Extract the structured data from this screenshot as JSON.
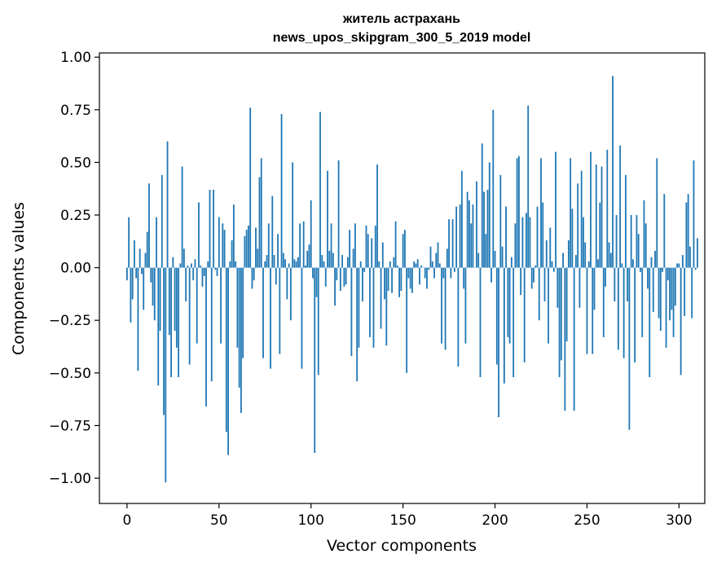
{
  "chart_data": {
    "type": "bar",
    "title_lines": [
      "житель астрахань",
      "news_upos_skipgram_300_5_2019 model"
    ],
    "xlabel": "Vector components",
    "ylabel": "Components values",
    "xlim": [
      -15,
      314
    ],
    "ylim": [
      -1.12,
      1.02
    ],
    "x_ticks": [
      0,
      50,
      100,
      150,
      200,
      250,
      300
    ],
    "x_tick_labels": [
      "0",
      "50",
      "100",
      "150",
      "200",
      "250",
      "300"
    ],
    "y_ticks": [
      -1.0,
      -0.75,
      -0.5,
      -0.25,
      0.0,
      0.25,
      0.5,
      0.75,
      1.0
    ],
    "y_tick_labels": [
      "−1.00",
      "−0.75",
      "−0.50",
      "−0.25",
      "0.00",
      "0.25",
      "0.50",
      "0.75",
      "1.00"
    ],
    "bar_color": "#1f77b4",
    "values": [
      -0.06,
      0.24,
      -0.26,
      -0.15,
      0.13,
      -0.05,
      -0.49,
      0.09,
      -0.03,
      -0.2,
      0.07,
      0.17,
      0.4,
      -0.07,
      -0.18,
      -0.25,
      0.24,
      -0.56,
      -0.3,
      0.44,
      -0.7,
      -1.02,
      0.6,
      -0.32,
      -0.52,
      0.05,
      -0.3,
      -0.38,
      -0.52,
      0.02,
      0.48,
      0.09,
      -0.16,
      0.01,
      -0.46,
      0.02,
      -0.06,
      0.04,
      -0.36,
      0.31,
      0.01,
      -0.09,
      -0.04,
      -0.66,
      0.03,
      0.37,
      -0.54,
      0.37,
      -0.01,
      -0.04,
      0.24,
      -0.36,
      0.21,
      0.18,
      -0.78,
      -0.89,
      0.03,
      0.13,
      0.3,
      0.03,
      -0.38,
      -0.57,
      -0.69,
      -0.43,
      0.15,
      0.18,
      0.2,
      0.76,
      -0.1,
      -0.06,
      0.19,
      0.09,
      0.43,
      0.52,
      -0.43,
      0.03,
      0.06,
      0.21,
      -0.48,
      0.34,
      0.06,
      -0.08,
      0.16,
      -0.41,
      0.73,
      0.07,
      0.04,
      -0.15,
      0.02,
      -0.25,
      0.5,
      0.04,
      0.03,
      0.05,
      0.21,
      -0.48,
      0.22,
      0.01,
      0.08,
      0.11,
      0.32,
      -0.05,
      -0.88,
      -0.14,
      -0.51,
      0.74,
      0.06,
      0.03,
      -0.09,
      0.46,
      0.08,
      0.21,
      0.07,
      -0.18,
      -0.06,
      0.51,
      -0.11,
      0.06,
      -0.09,
      -0.08,
      0.05,
      0.18,
      -0.42,
      0.09,
      0.21,
      -0.54,
      -0.38,
      0.03,
      -0.16,
      -0.02,
      0.2,
      0.16,
      -0.33,
      0.14,
      -0.38,
      0.2,
      0.49,
      0.03,
      -0.29,
      0.12,
      -0.15,
      -0.37,
      -0.11,
      0.03,
      -0.12,
      0.05,
      0.22,
      0.01,
      -0.14,
      -0.11,
      0.16,
      0.18,
      -0.5,
      -0.05,
      -0.1,
      -0.12,
      0.03,
      0.02,
      0.04,
      -0.08,
      0.01,
      0.0,
      -0.05,
      -0.1,
      -0.01,
      0.1,
      0.03,
      -0.05,
      0.07,
      0.12,
      0.02,
      -0.36,
      -0.05,
      -0.39,
      0.09,
      0.23,
      -0.05,
      0.23,
      -0.02,
      0.29,
      -0.47,
      0.3,
      0.46,
      -0.1,
      -0.36,
      0.36,
      0.32,
      0.21,
      0.3,
      0.0,
      0.41,
      0.07,
      -0.52,
      0.59,
      0.36,
      0.16,
      0.37,
      0.5,
      -0.07,
      0.75,
      0.08,
      -0.46,
      -0.71,
      0.44,
      0.1,
      -0.55,
      0.29,
      -0.33,
      -0.36,
      0.05,
      -0.52,
      0.21,
      0.52,
      0.53,
      -0.13,
      0.24,
      -0.45,
      0.26,
      0.77,
      0.24,
      -0.1,
      -0.07,
      0.01,
      0.29,
      -0.25,
      0.52,
      0.31,
      -0.16,
      0.13,
      -0.36,
      0.19,
      0.03,
      -0.02,
      0.55,
      -0.19,
      -0.52,
      -0.44,
      0.07,
      -0.68,
      -0.35,
      0.13,
      0.52,
      0.28,
      -0.68,
      0.06,
      0.4,
      -0.19,
      0.46,
      0.24,
      0.12,
      -0.41,
      0.03,
      0.55,
      -0.41,
      -0.2,
      0.49,
      0.04,
      0.31,
      0.48,
      -0.33,
      -0.09,
      0.56,
      0.12,
      0.07,
      0.91,
      -0.16,
      0.25,
      -0.39,
      0.58,
      0.02,
      -0.43,
      0.44,
      -0.16,
      -0.77,
      0.25,
      0.04,
      -0.45,
      0.25,
      0.16,
      -0.02,
      -0.33,
      0.32,
      0.21,
      -0.1,
      -0.52,
      0.05,
      -0.21,
      0.08,
      0.52,
      -0.24,
      -0.3,
      -0.02,
      0.35,
      -0.38,
      -0.06,
      -0.25,
      -0.2,
      -0.33,
      -0.18,
      0.02,
      0.02,
      -0.51,
      0.06,
      -0.23,
      0.31,
      0.35,
      0.1,
      -0.24,
      0.51,
      -0.01,
      0.14
    ]
  }
}
